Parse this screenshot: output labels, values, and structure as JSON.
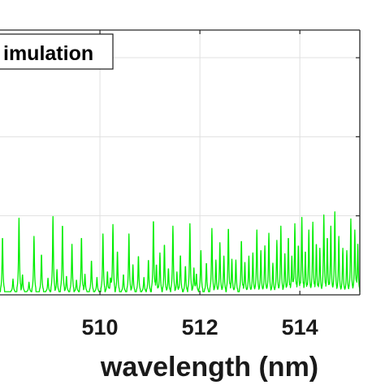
{
  "chart_data": {
    "type": "line",
    "xlabel": "wavelength (nm)",
    "ylabel": "",
    "xlim": [
      508.0,
      515.2
    ],
    "ylim": [
      0.0,
      3.35
    ],
    "grid": true,
    "x_ticks": [
      510,
      512,
      514
    ],
    "x_tick_labels": [
      "510",
      "512",
      "514"
    ],
    "y_grid_values": [
      1,
      2,
      3
    ],
    "legend": {
      "placement": "top-left",
      "entries": [
        "imulation"
      ]
    },
    "series": [
      {
        "color": "#00ee00",
        "baseline": 0.04,
        "peaks": [
          [
            508.05,
            0.7
          ],
          [
            508.26,
            0.16
          ],
          [
            508.38,
            0.93
          ],
          [
            508.45,
            0.22
          ],
          [
            508.58,
            0.12
          ],
          [
            508.68,
            0.7
          ],
          [
            508.83,
            0.48
          ],
          [
            508.96,
            0.17
          ],
          [
            509.06,
            0.95
          ],
          [
            509.14,
            0.28
          ],
          [
            509.25,
            0.86
          ],
          [
            509.33,
            0.2
          ],
          [
            509.44,
            0.6
          ],
          [
            509.53,
            0.15
          ],
          [
            509.63,
            0.7
          ],
          [
            509.7,
            0.22
          ],
          [
            509.83,
            0.4
          ],
          [
            509.94,
            0.18
          ],
          [
            510.06,
            0.73
          ],
          [
            510.15,
            0.26
          ],
          [
            510.21,
            0.18
          ],
          [
            510.26,
            0.85
          ],
          [
            510.35,
            0.52
          ],
          [
            510.47,
            0.22
          ],
          [
            510.58,
            0.73
          ],
          [
            510.66,
            0.34
          ],
          [
            510.77,
            0.46
          ],
          [
            510.88,
            0.18
          ],
          [
            510.97,
            0.41
          ],
          [
            511.07,
            0.92
          ],
          [
            511.13,
            0.35
          ],
          [
            511.2,
            0.49
          ],
          [
            511.29,
            0.61
          ],
          [
            511.37,
            0.3
          ],
          [
            511.46,
            0.83
          ],
          [
            511.54,
            0.25
          ],
          [
            511.61,
            0.47
          ],
          [
            511.71,
            0.33
          ],
          [
            511.8,
            0.86
          ],
          [
            511.88,
            0.3
          ],
          [
            511.93,
            0.23
          ],
          [
            512.02,
            0.52
          ],
          [
            512.13,
            0.37
          ],
          [
            512.24,
            0.8
          ],
          [
            512.32,
            0.4
          ],
          [
            512.4,
            0.62
          ],
          [
            512.48,
            0.45
          ],
          [
            512.57,
            0.82
          ],
          [
            512.64,
            0.41
          ],
          [
            512.72,
            0.4
          ],
          [
            512.83,
            0.66
          ],
          [
            512.9,
            0.37
          ],
          [
            512.98,
            0.45
          ],
          [
            513.06,
            0.49
          ],
          [
            513.14,
            0.78
          ],
          [
            513.22,
            0.52
          ],
          [
            513.3,
            0.58
          ],
          [
            513.38,
            0.74
          ],
          [
            513.46,
            0.36
          ],
          [
            513.54,
            0.65
          ],
          [
            513.62,
            0.83
          ],
          [
            513.7,
            0.48
          ],
          [
            513.77,
            0.7
          ],
          [
            513.84,
            0.45
          ],
          [
            513.9,
            0.86
          ],
          [
            513.97,
            0.6
          ],
          [
            514.04,
            0.94
          ],
          [
            514.11,
            0.52
          ],
          [
            514.18,
            0.78
          ],
          [
            514.26,
            0.88
          ],
          [
            514.33,
            0.62
          ],
          [
            514.4,
            0.55
          ],
          [
            514.48,
            0.97
          ],
          [
            514.55,
            0.7
          ],
          [
            514.62,
            0.83
          ],
          [
            514.7,
            1.01
          ],
          [
            514.78,
            0.7
          ],
          [
            514.86,
            0.55
          ],
          [
            514.94,
            0.52
          ],
          [
            515.02,
            0.92
          ],
          [
            515.1,
            0.78
          ],
          [
            515.16,
            0.6
          ]
        ]
      }
    ]
  }
}
